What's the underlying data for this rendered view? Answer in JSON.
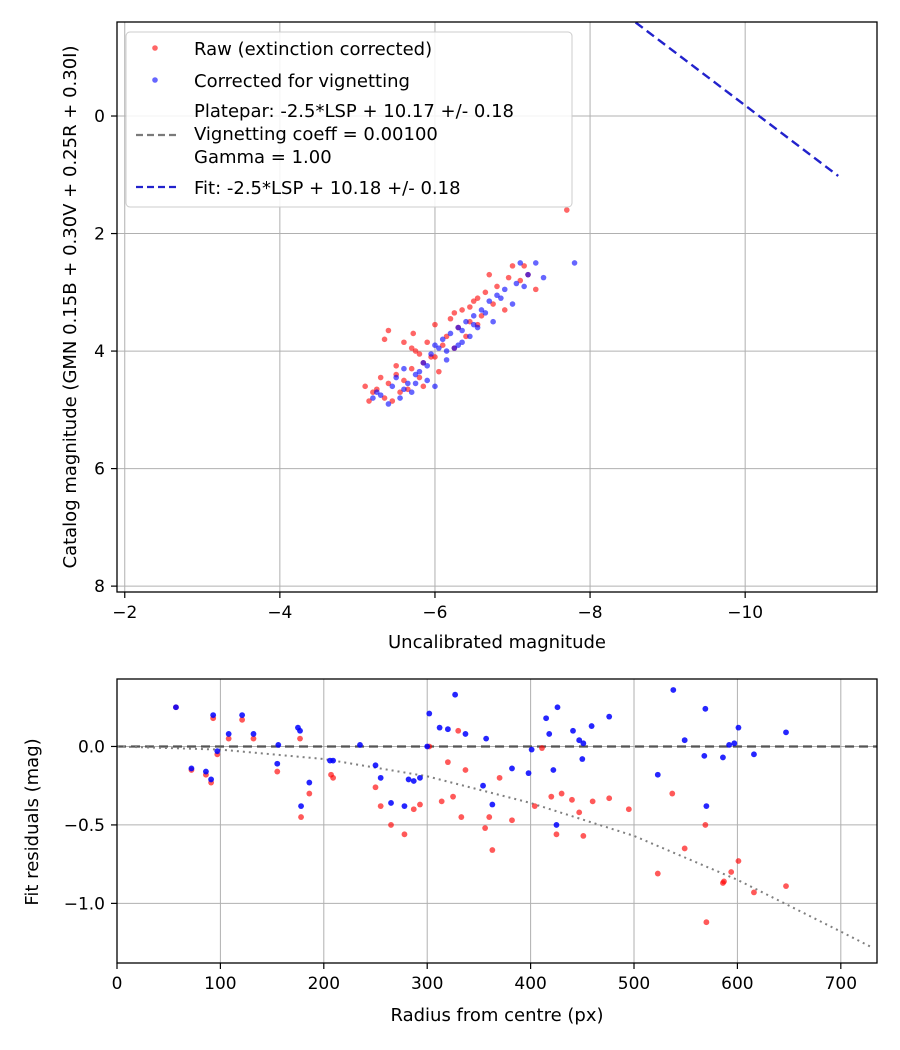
{
  "chart_data": [
    {
      "type": "scatter",
      "xlabel": "Uncalibrated magnitude",
      "ylabel": "Catalog magnitude (GMN 0.15B + 0.30V + 0.25R + 0.30I)",
      "xlim": [
        -1.9,
        -11.7
      ],
      "ylim": [
        8.1,
        -1.6
      ],
      "x_ticks": [
        -2,
        -4,
        -6,
        -8,
        -10
      ],
      "x_tick_labels": [
        "−2",
        "−4",
        "−6",
        "−8",
        "−10"
      ],
      "y_ticks": [
        0,
        2,
        4,
        6,
        8
      ],
      "y_tick_labels": [
        "0",
        "2",
        "4",
        "6",
        "8"
      ],
      "grid": true,
      "legend": [
        {
          "name": "Raw (extinction corrected)",
          "kind": "marker",
          "color": "#ff0000"
        },
        {
          "name": "Corrected for vignetting",
          "kind": "marker",
          "color": "#0000ff"
        },
        {
          "name": "Platepar: -2.5*LSP + 10.17 +/- 0.18",
          "name2": "Vignetting coeff = 0.00100",
          "name3": "Gamma = 1.00",
          "kind": "dashed",
          "color": "#7a7a7a"
        },
        {
          "name": "Fit: -2.5*LSP + 10.18 +/- 0.18",
          "kind": "dashed",
          "color": "#2222cc"
        }
      ],
      "fit_line": {
        "slope": -1.0,
        "intercept": -10.18,
        "color": "#2222cc"
      },
      "series": [
        {
          "name": "Raw (extinction corrected)",
          "color": "#ff0000",
          "points": [
            [
              -5.1,
              4.6
            ],
            [
              -5.15,
              4.85
            ],
            [
              -5.2,
              4.7
            ],
            [
              -5.25,
              4.65
            ],
            [
              -5.3,
              4.45
            ],
            [
              -5.35,
              4.8
            ],
            [
              -5.4,
              4.55
            ],
            [
              -5.45,
              4.85
            ],
            [
              -5.5,
              4.4
            ],
            [
              -5.55,
              4.7
            ],
            [
              -5.6,
              4.5
            ],
            [
              -5.65,
              4.65
            ],
            [
              -5.7,
              4.3
            ],
            [
              -5.72,
              3.7
            ],
            [
              -5.75,
              4.0
            ],
            [
              -5.8,
              4.45
            ],
            [
              -5.85,
              4.2
            ],
            [
              -5.9,
              3.85
            ],
            [
              -5.95,
              4.1
            ],
            [
              -6.0,
              3.55
            ],
            [
              -6.05,
              4.35
            ],
            [
              -6.1,
              3.9
            ],
            [
              -6.15,
              3.75
            ],
            [
              -6.2,
              3.45
            ],
            [
              -6.25,
              3.95
            ],
            [
              -6.3,
              3.6
            ],
            [
              -6.35,
              3.3
            ],
            [
              -6.4,
              3.75
            ],
            [
              -6.45,
              3.5
            ],
            [
              -6.5,
              3.15
            ],
            [
              -6.55,
              3.55
            ],
            [
              -6.6,
              3.4
            ],
            [
              -6.65,
              3.0
            ],
            [
              -6.7,
              2.7
            ],
            [
              -6.75,
              3.2
            ],
            [
              -6.8,
              2.9
            ],
            [
              -6.9,
              3.3
            ],
            [
              -6.95,
              2.75
            ],
            [
              -7.0,
              2.55
            ],
            [
              -7.1,
              2.8
            ],
            [
              -7.15,
              2.55
            ],
            [
              -7.2,
              2.7
            ],
            [
              -7.3,
              2.95
            ],
            [
              -7.7,
              1.6
            ],
            [
              -5.4,
              3.65
            ],
            [
              -5.6,
              3.85
            ],
            [
              -5.8,
              4.05
            ],
            [
              -6.0,
              4.1
            ],
            [
              -5.5,
              4.25
            ],
            [
              -5.85,
              4.6
            ],
            [
              -6.25,
              3.35
            ],
            [
              -6.45,
              3.25
            ],
            [
              -6.55,
              3.1
            ],
            [
              -5.35,
              3.8
            ],
            [
              -5.7,
              3.95
            ]
          ]
        },
        {
          "name": "Corrected for vignetting",
          "color": "#0000ff",
          "points": [
            [
              -5.2,
              4.8
            ],
            [
              -5.25,
              4.7
            ],
            [
              -5.4,
              4.9
            ],
            [
              -5.45,
              4.6
            ],
            [
              -5.5,
              4.45
            ],
            [
              -5.55,
              4.8
            ],
            [
              -5.6,
              4.3
            ],
            [
              -5.65,
              4.55
            ],
            [
              -5.7,
              4.7
            ],
            [
              -5.75,
              4.4
            ],
            [
              -5.8,
              4.35
            ],
            [
              -5.85,
              4.2
            ],
            [
              -5.9,
              4.5
            ],
            [
              -5.95,
              4.05
            ],
            [
              -6.0,
              4.6
            ],
            [
              -6.05,
              3.95
            ],
            [
              -6.1,
              3.8
            ],
            [
              -6.15,
              4.15
            ],
            [
              -6.2,
              3.7
            ],
            [
              -6.25,
              3.95
            ],
            [
              -6.3,
              3.6
            ],
            [
              -6.35,
              3.85
            ],
            [
              -6.4,
              3.5
            ],
            [
              -6.45,
              3.75
            ],
            [
              -6.5,
              3.4
            ],
            [
              -6.55,
              3.6
            ],
            [
              -6.6,
              3.3
            ],
            [
              -6.7,
              3.15
            ],
            [
              -6.75,
              3.5
            ],
            [
              -6.8,
              3.05
            ],
            [
              -6.9,
              2.95
            ],
            [
              -7.0,
              3.2
            ],
            [
              -7.05,
              2.85
            ],
            [
              -7.1,
              2.5
            ],
            [
              -7.2,
              2.7
            ],
            [
              -7.3,
              2.5
            ],
            [
              -7.4,
              2.75
            ],
            [
              -7.8,
              2.5
            ],
            [
              -5.3,
              4.75
            ],
            [
              -5.6,
              4.65
            ],
            [
              -5.9,
              4.25
            ],
            [
              -6.0,
              3.9
            ],
            [
              -6.15,
              4.0
            ],
            [
              -6.3,
              3.9
            ],
            [
              -6.5,
              3.55
            ],
            [
              -6.65,
              3.35
            ],
            [
              -6.85,
              3.1
            ],
            [
              -7.15,
              2.9
            ],
            [
              -5.75,
              4.55
            ],
            [
              -6.35,
              3.65
            ]
          ]
        }
      ]
    },
    {
      "type": "scatter",
      "xlabel": "Radius from centre (px)",
      "ylabel": "Fit residuals (mag)",
      "xlim": [
        0,
        735
      ],
      "ylim": [
        -1.38,
        0.43
      ],
      "x_ticks": [
        0,
        100,
        200,
        300,
        400,
        500,
        600,
        700
      ],
      "x_tick_labels": [
        "0",
        "100",
        "200",
        "300",
        "400",
        "500",
        "600",
        "700"
      ],
      "y_ticks": [
        0.0,
        -0.5,
        -1.0
      ],
      "y_tick_labels": [
        "0.0",
        "−0.5",
        "−1.0"
      ],
      "grid": true,
      "reference_line": {
        "y": 0,
        "color": "#555555",
        "style": "dashed"
      },
      "vignetting_curve": {
        "coeff": 0.001,
        "samples": [
          [
            0,
            0.0
          ],
          [
            100,
            -0.02
          ],
          [
            200,
            -0.08
          ],
          [
            300,
            -0.19
          ],
          [
            400,
            -0.36
          ],
          [
            500,
            -0.57
          ],
          [
            600,
            -0.85
          ],
          [
            700,
            -1.18
          ],
          [
            730,
            -1.28
          ]
        ],
        "color": "#808080",
        "style": "dotted"
      },
      "series": [
        {
          "name": "Raw (extinction corrected)",
          "color": "#ff0000",
          "points": [
            [
              57,
              0.25
            ],
            [
              72,
              -0.15
            ],
            [
              86,
              -0.18
            ],
            [
              91,
              -0.23
            ],
            [
              93,
              0.18
            ],
            [
              97,
              -0.05
            ],
            [
              108,
              0.05
            ],
            [
              121,
              0.17
            ],
            [
              132,
              0.05
            ],
            [
              155,
              -0.16
            ],
            [
              177,
              0.05
            ],
            [
              178,
              -0.45
            ],
            [
              186,
              -0.3
            ],
            [
              207,
              -0.18
            ],
            [
              209,
              -0.2
            ],
            [
              250,
              -0.26
            ],
            [
              255,
              -0.38
            ],
            [
              265,
              -0.5
            ],
            [
              278,
              -0.56
            ],
            [
              287,
              -0.4
            ],
            [
              293,
              -0.37
            ],
            [
              302,
              0.0
            ],
            [
              314,
              -0.35
            ],
            [
              320,
              -0.1
            ],
            [
              325,
              -0.32
            ],
            [
              333,
              -0.45
            ],
            [
              337,
              -0.15
            ],
            [
              356,
              -0.52
            ],
            [
              360,
              -0.45
            ],
            [
              363,
              -0.66
            ],
            [
              382,
              -0.47
            ],
            [
              404,
              -0.38
            ],
            [
              420,
              -0.32
            ],
            [
              425,
              -0.56
            ],
            [
              440,
              -0.34
            ],
            [
              447,
              -0.42
            ],
            [
              451,
              -0.57
            ],
            [
              460,
              -0.35
            ],
            [
              476,
              -0.33
            ],
            [
              523,
              -0.81
            ],
            [
              537,
              -0.3
            ],
            [
              549,
              -0.65
            ],
            [
              569,
              -0.5
            ],
            [
              570,
              -1.12
            ],
            [
              586,
              -0.87
            ],
            [
              587,
              -0.86
            ],
            [
              594,
              -0.8
            ],
            [
              601,
              -0.73
            ],
            [
              616,
              -0.93
            ],
            [
              647,
              -0.89
            ],
            [
              330,
              0.1
            ],
            [
              411,
              -0.01
            ],
            [
              370,
              -0.2
            ],
            [
              430,
              -0.3
            ],
            [
              495,
              -0.4
            ]
          ]
        },
        {
          "name": "Corrected for vignetting",
          "color": "#0000ff",
          "points": [
            [
              57,
              0.25
            ],
            [
              72,
              -0.14
            ],
            [
              86,
              -0.16
            ],
            [
              91,
              -0.21
            ],
            [
              93,
              0.2
            ],
            [
              97,
              -0.03
            ],
            [
              108,
              0.08
            ],
            [
              121,
              0.2
            ],
            [
              132,
              0.08
            ],
            [
              155,
              -0.11
            ],
            [
              156,
              0.01
            ],
            [
              175,
              0.12
            ],
            [
              177,
              0.1
            ],
            [
              178,
              -0.38
            ],
            [
              186,
              -0.23
            ],
            [
              206,
              -0.09
            ],
            [
              209,
              -0.09
            ],
            [
              235,
              0.01
            ],
            [
              250,
              -0.12
            ],
            [
              255,
              -0.2
            ],
            [
              265,
              -0.36
            ],
            [
              278,
              -0.38
            ],
            [
              287,
              -0.22
            ],
            [
              293,
              -0.2
            ],
            [
              300,
              0.0
            ],
            [
              302,
              0.21
            ],
            [
              312,
              0.12
            ],
            [
              320,
              0.11
            ],
            [
              327,
              0.33
            ],
            [
              337,
              0.08
            ],
            [
              354,
              -0.25
            ],
            [
              357,
              0.05
            ],
            [
              363,
              -0.37
            ],
            [
              382,
              -0.14
            ],
            [
              401,
              -0.02
            ],
            [
              415,
              0.18
            ],
            [
              418,
              0.08
            ],
            [
              422,
              -0.15
            ],
            [
              426,
              0.25
            ],
            [
              441,
              0.1
            ],
            [
              447,
              0.04
            ],
            [
              451,
              0.02
            ],
            [
              459,
              0.13
            ],
            [
              476,
              0.19
            ],
            [
              523,
              -0.18
            ],
            [
              538,
              0.36
            ],
            [
              549,
              0.04
            ],
            [
              569,
              0.24
            ],
            [
              570,
              -0.38
            ],
            [
              586,
              -0.07
            ],
            [
              592,
              0.01
            ],
            [
              597,
              0.02
            ],
            [
              601,
              0.12
            ],
            [
              616,
              -0.05
            ],
            [
              647,
              0.09
            ],
            [
              568,
              -0.06
            ],
            [
              450,
              -0.08
            ],
            [
              425,
              -0.5
            ],
            [
              398,
              -0.17
            ],
            [
              282,
              -0.21
            ]
          ]
        }
      ]
    }
  ]
}
